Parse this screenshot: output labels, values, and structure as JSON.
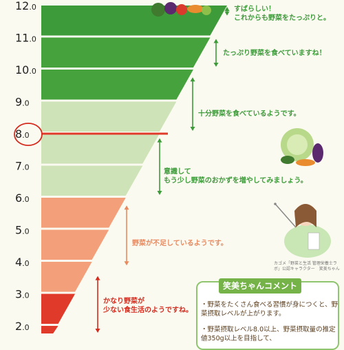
{
  "chart_data": {
    "type": "bar",
    "orientation": "horizontal-funnel",
    "y_ticks": [
      {
        "main": "12",
        "dec": ".0",
        "v": 12
      },
      {
        "main": "11",
        "dec": ".0",
        "v": 11
      },
      {
        "main": "10",
        "dec": ".0",
        "v": 10
      },
      {
        "main": "9",
        "dec": ".0",
        "v": 9
      },
      {
        "main": "8",
        "dec": ".0",
        "v": 8
      },
      {
        "main": "7",
        "dec": ".0",
        "v": 7
      },
      {
        "main": "6",
        "dec": ".0",
        "v": 6
      },
      {
        "main": "5",
        "dec": ".0",
        "v": 5
      },
      {
        "main": "4",
        "dec": ".0",
        "v": 4
      },
      {
        "main": "3",
        "dec": ".0",
        "v": 3
      },
      {
        "main": "2",
        "dec": ".0",
        "v": 2
      }
    ],
    "highlight_level": 8,
    "levels": [
      {
        "from": 11,
        "to": 12,
        "color": "#3d9b3a"
      },
      {
        "from": 10,
        "to": 11,
        "color": "#46a23c"
      },
      {
        "from": 9,
        "to": 10,
        "color": "#46a23c"
      },
      {
        "from": 8,
        "to": 9,
        "color": "#cfe3b8"
      },
      {
        "from": 7,
        "to": 8,
        "color": "#cfe3b8"
      },
      {
        "from": 6,
        "to": 7,
        "color": "#cfe3b8"
      },
      {
        "from": 5,
        "to": 6,
        "color": "#f3a07a"
      },
      {
        "from": 4,
        "to": 5,
        "color": "#f3a07a"
      },
      {
        "from": 3,
        "to": 4,
        "color": "#f3a07a"
      },
      {
        "from": 2,
        "to": 3,
        "color": "#e03a2a"
      },
      {
        "from": 1.7,
        "to": 2,
        "color": "#e03a2a"
      }
    ],
    "annotations": [
      {
        "lines": [
          "すばらしい！",
          "これからも野菜をたっぷりと。"
        ],
        "from": 11.6,
        "to": 12,
        "color": "#3d9b3a",
        "arrow": "#3d9b3a"
      },
      {
        "lines": [
          "たっぷり野菜を食べていますね！"
        ],
        "from": 10,
        "to": 11,
        "color": "#3d9b3a",
        "arrow": "#3d9b3a"
      },
      {
        "lines": [
          "十分野菜を食べているようです。"
        ],
        "from": 8,
        "to": 9.8,
        "color": "#3d9b3a",
        "arrow": "#3d9b3a"
      },
      {
        "lines": [
          "意識して",
          "もう少し野菜のおかずを増やしてみましょう。"
        ],
        "from": 6,
        "to": 7.9,
        "color": "#3d9b3a",
        "arrow": "#3d9b3a"
      },
      {
        "lines": [
          "野菜が不足しているようです。"
        ],
        "from": 3.8,
        "to": 5.8,
        "color": "#e88a5f",
        "arrow": "#e88a5f"
      },
      {
        "lines": [
          "かなり野菜が",
          "少ない食生活のようですね。"
        ],
        "from": 1.7,
        "to": 3.6,
        "color": "#d42b1e",
        "arrow": "#d42b1e"
      }
    ],
    "colors": {
      "dark_green": "#3d9b3a",
      "light_green": "#cfe3b8",
      "salmon": "#f3a07a",
      "red": "#e03a2a",
      "highlight_line": "#e03a2a"
    }
  },
  "panel": {
    "title": "笑美ちゃんコメント",
    "items": [
      "・野菜をたくさん食べる習慣が身につくと、野菜摂取レベルが上がります。",
      "・野菜摂取レベル8.0以上、野菜摂取量の推定値350g以上を目指して、"
    ]
  },
  "credit": "カゴメ「野菜と生活 管理栄養士ラボ」公認キャラクター　笑美ちゃん"
}
